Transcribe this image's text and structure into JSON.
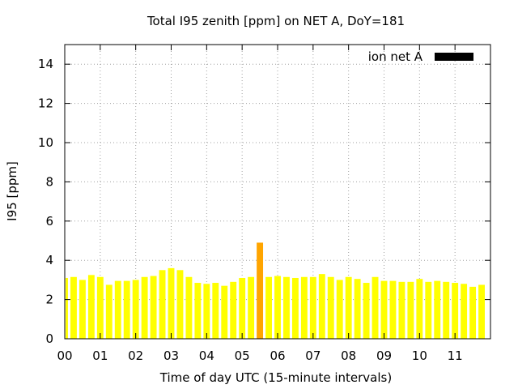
{
  "chart_data": {
    "type": "bar",
    "title": "Total I95 zenith [ppm] on NET A, DoY=181",
    "xlabel": "Time of day UTC (15-minute intervals)",
    "ylabel": "I95 [ppm]",
    "ylim": [
      0,
      15
    ],
    "xlim": [
      0,
      12
    ],
    "y_ticks": [
      "0",
      "2",
      "4",
      "6",
      "8",
      "10",
      "12",
      "14"
    ],
    "x_ticks": [
      "00",
      "01",
      "02",
      "03",
      "04",
      "05",
      "06",
      "07",
      "08",
      "09",
      "10",
      "11"
    ],
    "grid": true,
    "legend_position": "top-right",
    "series": [
      {
        "name": "ion net A",
        "legend_color": "#000000",
        "bar_color": "#ffff00",
        "highlight_color": "#ffa500",
        "x": [
          0.0,
          0.25,
          0.5,
          0.75,
          1.0,
          1.25,
          1.5,
          1.75,
          2.0,
          2.25,
          2.5,
          2.75,
          3.0,
          3.25,
          3.5,
          3.75,
          4.0,
          4.25,
          4.5,
          4.75,
          5.0,
          5.25,
          5.5,
          5.75,
          6.0,
          6.25,
          6.5,
          6.75,
          7.0,
          7.25,
          7.5,
          7.75,
          8.0,
          8.25,
          8.5,
          8.75,
          9.0,
          9.25,
          9.5,
          9.75,
          10.0,
          10.25,
          10.5,
          10.75,
          11.0,
          11.25,
          11.5,
          11.75
        ],
        "values": [
          3.1,
          3.15,
          3.0,
          3.25,
          3.15,
          2.75,
          2.95,
          2.95,
          3.0,
          3.15,
          3.2,
          3.5,
          3.6,
          3.5,
          3.15,
          2.85,
          2.8,
          2.85,
          2.7,
          2.9,
          3.1,
          3.15,
          4.9,
          3.15,
          3.2,
          3.15,
          3.1,
          3.15,
          3.15,
          3.3,
          3.15,
          3.0,
          3.15,
          3.05,
          2.85,
          3.15,
          2.95,
          2.95,
          2.9,
          2.9,
          3.05,
          2.9,
          2.95,
          2.9,
          2.85,
          2.8,
          2.65,
          2.75
        ],
        "highlight_indices": [
          22
        ]
      }
    ]
  }
}
